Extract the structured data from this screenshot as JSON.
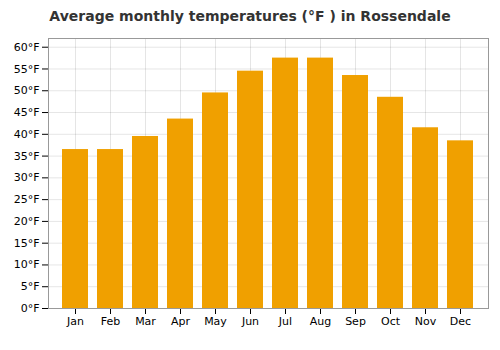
{
  "chart_data": {
    "type": "bar",
    "title": "Average monthly temperatures (°F ) in Rossendale",
    "categories": [
      "Jan",
      "Feb",
      "Mar",
      "Apr",
      "May",
      "Jun",
      "Jul",
      "Aug",
      "Sep",
      "Oct",
      "Nov",
      "Dec"
    ],
    "values": [
      36.5,
      36.5,
      39.5,
      43.5,
      49.5,
      54.5,
      57.5,
      57.5,
      53.5,
      48.5,
      41.5,
      38.5
    ],
    "color": "#F0A000",
    "ylim": [
      0,
      62
    ],
    "yticks": [
      {
        "value": 0,
        "label": "0°F"
      },
      {
        "value": 5,
        "label": "5°F"
      },
      {
        "value": 10,
        "label": "10°F"
      },
      {
        "value": 15,
        "label": "15°F"
      },
      {
        "value": 20,
        "label": "20°F"
      },
      {
        "value": 25,
        "label": "25°F"
      },
      {
        "value": 30,
        "label": "30°F"
      },
      {
        "value": 35,
        "label": "35°F"
      },
      {
        "value": 40,
        "label": "40°F"
      },
      {
        "value": 45,
        "label": "45°F"
      },
      {
        "value": 50,
        "label": "50°F"
      },
      {
        "value": 55,
        "label": "55°F"
      },
      {
        "value": 60,
        "label": "60°F"
      }
    ],
    "grid": true
  }
}
